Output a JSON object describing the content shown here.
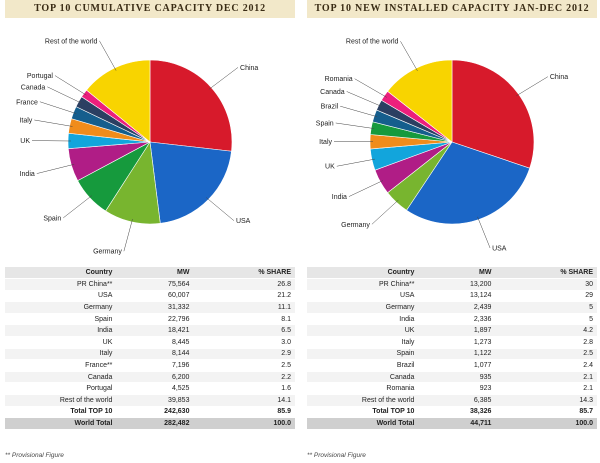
{
  "footnote": "** Provisional Figure",
  "table_headers": {
    "country": "Country",
    "mw": "MW",
    "share": "% SHARE"
  },
  "colors": {
    "China": "#d71a2b",
    "USA": "#1b66c6",
    "Germany": "#78b52f",
    "Spain": "#169a3d",
    "India": "#b01d86",
    "UK": "#12a5dc",
    "Italy": "#f08c1b",
    "France": "#155e8d",
    "Canada": "#2b3f62",
    "Portugal": "#ec1f7c",
    "Rest of the world": "#f8d400",
    "Romania": "#ec1f7c",
    "Brazil": "#155e8d"
  },
  "chart_data": [
    {
      "type": "pie",
      "title": "TOP 10 CUMULATIVE CAPACITY DEC 2012",
      "slices": [
        {
          "label": "China",
          "value": 26.8
        },
        {
          "label": "USA",
          "value": 21.2
        },
        {
          "label": "Germany",
          "value": 11.1
        },
        {
          "label": "Spain",
          "value": 8.1
        },
        {
          "label": "India",
          "value": 6.5
        },
        {
          "label": "UK",
          "value": 3.0
        },
        {
          "label": "Italy",
          "value": 2.9
        },
        {
          "label": "France",
          "value": 2.5
        },
        {
          "label": "Canada",
          "value": 2.2
        },
        {
          "label": "Portugal",
          "value": 1.6
        },
        {
          "label": "Rest of the world",
          "value": 14.1
        }
      ],
      "table": {
        "rows": [
          {
            "country": "PR China**",
            "mw": "75,564",
            "share": "26.8"
          },
          {
            "country": "USA",
            "mw": "60,007",
            "share": "21.2"
          },
          {
            "country": "Germany",
            "mw": "31,332",
            "share": "11.1"
          },
          {
            "country": "Spain",
            "mw": "22,796",
            "share": "8.1"
          },
          {
            "country": "India",
            "mw": "18,421",
            "share": "6.5"
          },
          {
            "country": "UK",
            "mw": "8,445",
            "share": "3.0"
          },
          {
            "country": "Italy",
            "mw": "8,144",
            "share": "2.9"
          },
          {
            "country": "France**",
            "mw": "7,196",
            "share": "2.5"
          },
          {
            "country": "Canada",
            "mw": "6,200",
            "share": "2.2"
          },
          {
            "country": "Portugal",
            "mw": "4,525",
            "share": "1.6"
          },
          {
            "country": "Rest of the world",
            "mw": "39,853",
            "share": "14.1"
          }
        ],
        "total": {
          "country": "Total TOP 10",
          "mw": "242,630",
          "share": "85.9"
        },
        "world": {
          "country": "World Total",
          "mw": "282,482",
          "share": "100.0"
        }
      }
    },
    {
      "type": "pie",
      "title": "TOP 10 NEW INSTALLED CAPACITY JAN-DEC 2012",
      "slices": [
        {
          "label": "China",
          "value": 30
        },
        {
          "label": "USA",
          "value": 29
        },
        {
          "label": "Germany",
          "value": 5
        },
        {
          "label": "India",
          "value": 5
        },
        {
          "label": "UK",
          "value": 4.2
        },
        {
          "label": "Italy",
          "value": 2.8
        },
        {
          "label": "Spain",
          "value": 2.5
        },
        {
          "label": "Brazil",
          "value": 2.4
        },
        {
          "label": "Canada",
          "value": 2.1
        },
        {
          "label": "Romania",
          "value": 2.1
        },
        {
          "label": "Rest of the world",
          "value": 14.3
        }
      ],
      "table": {
        "rows": [
          {
            "country": "PR China**",
            "mw": "13,200",
            "share": "30"
          },
          {
            "country": "USA",
            "mw": "13,124",
            "share": "29"
          },
          {
            "country": "Germany",
            "mw": "2,439",
            "share": "5"
          },
          {
            "country": "India",
            "mw": "2,336",
            "share": "5"
          },
          {
            "country": "UK",
            "mw": "1,897",
            "share": "4.2"
          },
          {
            "country": "Italy",
            "mw": "1,273",
            "share": "2.8"
          },
          {
            "country": "Spain",
            "mw": "1,122",
            "share": "2.5"
          },
          {
            "country": "Brazil",
            "mw": "1,077",
            "share": "2.4"
          },
          {
            "country": "Canada",
            "mw": "935",
            "share": "2.1"
          },
          {
            "country": "Romania",
            "mw": "923",
            "share": "2.1"
          },
          {
            "country": "Rest of the world",
            "mw": "6,385",
            "share": "14.3"
          }
        ],
        "total": {
          "country": "Total TOP 10",
          "mw": "38,326",
          "share": "85.7"
        },
        "world": {
          "country": "World Total",
          "mw": "44,711",
          "share": "100.0"
        }
      }
    }
  ]
}
